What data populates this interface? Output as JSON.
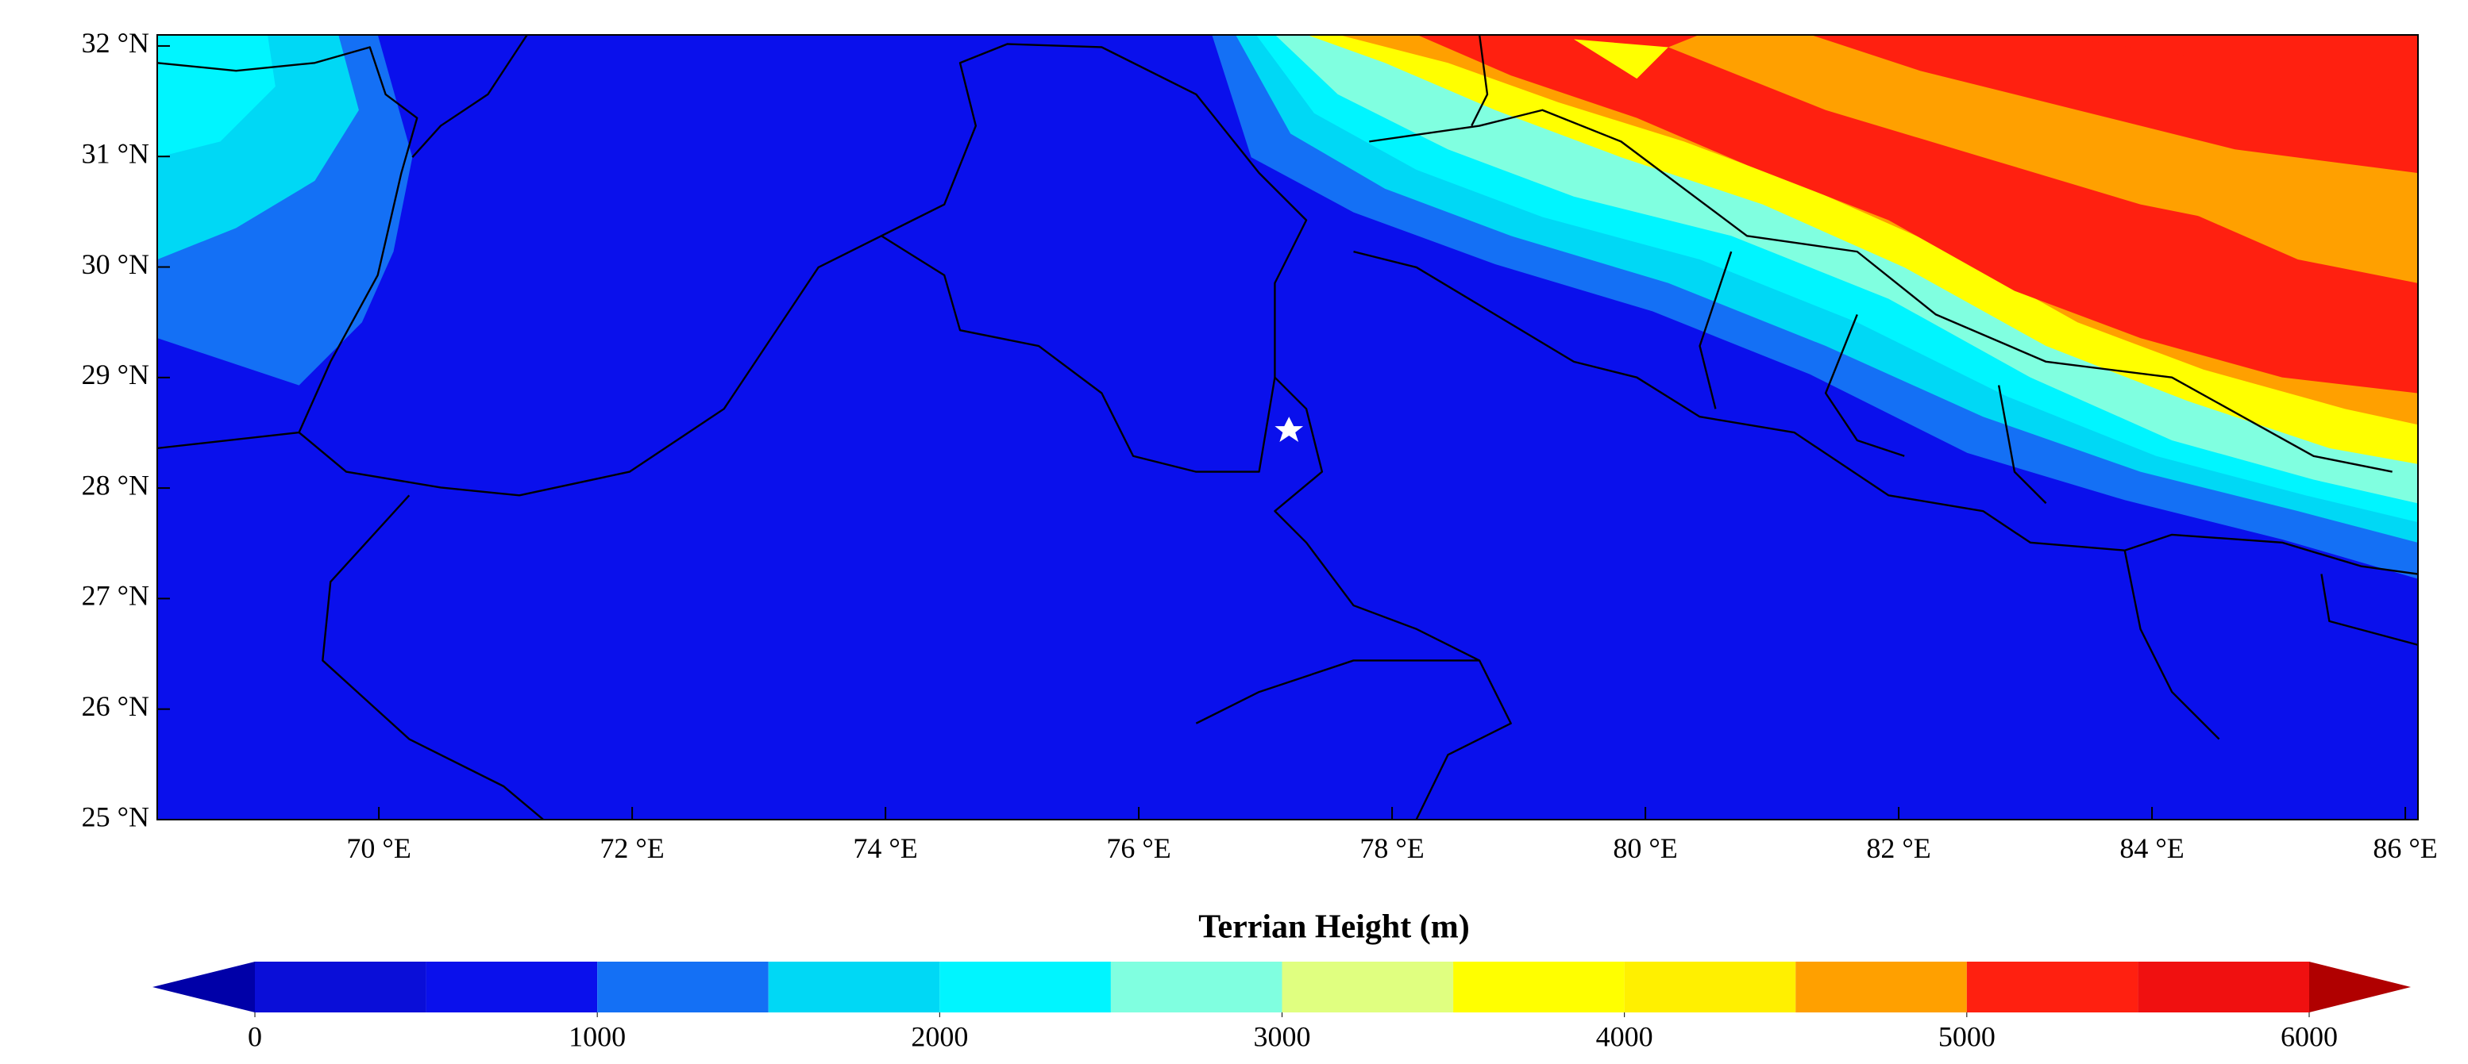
{
  "map": {
    "xlim": [
      68.25,
      86.1
    ],
    "ylim": [
      25,
      32.1
    ],
    "xticks": [
      {
        "value": 70,
        "label": "70 °E"
      },
      {
        "value": 72,
        "label": "72 °E"
      },
      {
        "value": 74,
        "label": "74 °E"
      },
      {
        "value": 76,
        "label": "76 °E"
      },
      {
        "value": 78,
        "label": "78 °E"
      },
      {
        "value": 80,
        "label": "80 °E"
      },
      {
        "value": 82,
        "label": "82 °E"
      },
      {
        "value": 84,
        "label": "84 °E"
      },
      {
        "value": 86,
        "label": "86 °E"
      }
    ],
    "yticks": [
      {
        "value": 25,
        "label": "25 °N"
      },
      {
        "value": 26,
        "label": "26 °N"
      },
      {
        "value": 27,
        "label": "27 °N"
      },
      {
        "value": 28,
        "label": "28 °N"
      },
      {
        "value": 29,
        "label": "29 °N"
      },
      {
        "value": 30,
        "label": "30 °N"
      },
      {
        "value": 31,
        "label": "31 °N"
      },
      {
        "value": 32,
        "label": "32 °N"
      }
    ]
  },
  "colorbar": {
    "title": "Terrian Height (m)",
    "levels": [
      0,
      500,
      1000,
      1500,
      2000,
      2500,
      3000,
      3500,
      4000,
      4500,
      5000,
      5500,
      6000
    ],
    "colors": [
      "#0a0ed8",
      "#0a10ec",
      "#1470f5",
      "#00d8f5",
      "#00f5ff",
      "#80ffe0",
      "#e0ff80",
      "#ffff00",
      "#fff000",
      "#ffa000",
      "#ff2010",
      "#f01010"
    ],
    "under_color": "#0000a8",
    "over_color": "#b00000",
    "ticks": [
      0,
      1000,
      2000,
      3000,
      4000,
      5000,
      6000
    ]
  }
}
